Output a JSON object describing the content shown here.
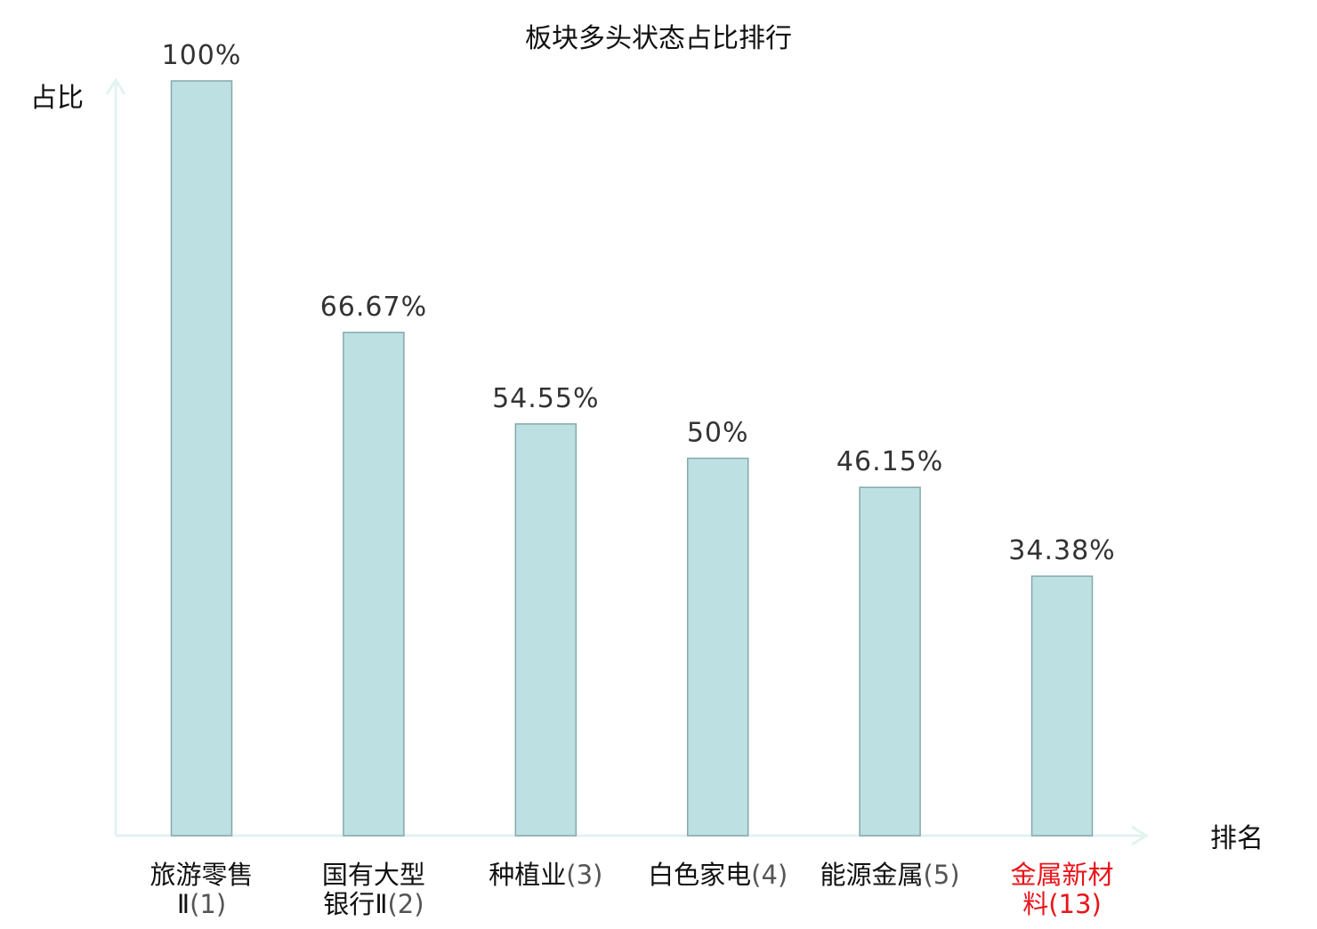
{
  "chart_data": {
    "type": "bar",
    "title": "板块多头状态占比排行",
    "ylabel": "占比",
    "xlabel": "排名",
    "ylim": [
      0,
      100
    ],
    "grid": false,
    "categories": [
      {
        "name_lines": [
          "旅游零售",
          "Ⅱ"
        ],
        "rank": "(1)",
        "highlight": false
      },
      {
        "name_lines": [
          "国有大型",
          "银行Ⅱ"
        ],
        "rank": "(2)",
        "highlight": false
      },
      {
        "name_lines": [
          "种植业"
        ],
        "rank": "(3)",
        "highlight": false
      },
      {
        "name_lines": [
          "白色家电"
        ],
        "rank": "(4)",
        "highlight": false
      },
      {
        "name_lines": [
          "能源金属"
        ],
        "rank": "(5)",
        "highlight": false
      },
      {
        "name_lines": [
          "金属新材",
          "料"
        ],
        "rank": "(13)",
        "highlight": true
      }
    ],
    "values": [
      100,
      66.67,
      54.55,
      50,
      46.15,
      34.38
    ],
    "value_labels": [
      "100%",
      "66.67%",
      "54.55%",
      "50%",
      "46.15%",
      "34.38%"
    ]
  },
  "colors": {
    "bar_fill": "#bde0e2",
    "bar_stroke": "#86a8ab",
    "axis": "#e2f3f1",
    "text": "#111111",
    "value_text": "#333333",
    "rank_text": "#555555",
    "highlight": "#e8151b"
  }
}
